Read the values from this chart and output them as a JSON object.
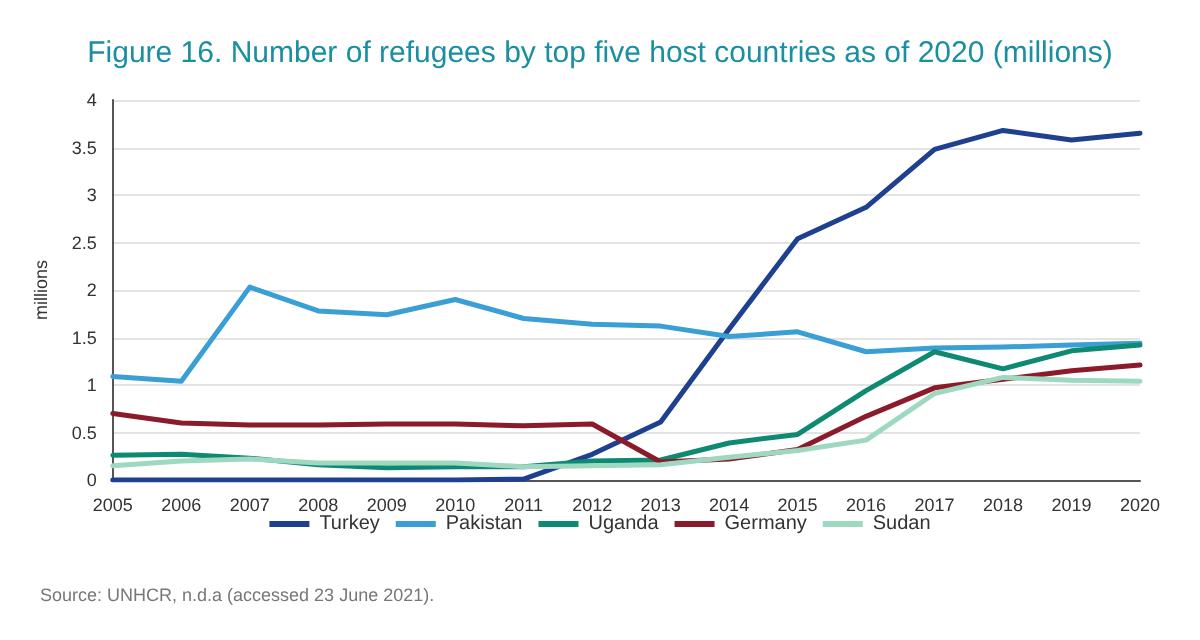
{
  "chart_data": {
    "type": "line",
    "title": "Figure 16. Number of refugees by top five host countries as of 2020 (millions)",
    "ylabel": "millions",
    "categories": [
      "2005",
      "2006",
      "2007",
      "2008",
      "2009",
      "2010",
      "2011",
      "2012",
      "2013",
      "2014",
      "2015",
      "2016",
      "2017",
      "2018",
      "2019",
      "2020"
    ],
    "series": [
      {
        "name": "Turkey",
        "color": "#1f3f8f",
        "values": [
          0,
          0,
          0,
          0,
          0,
          0,
          0.01,
          0.27,
          0.61,
          1.59,
          2.54,
          2.87,
          3.48,
          3.68,
          3.58,
          3.65
        ]
      },
      {
        "name": "Pakistan",
        "color": "#3a9fd4",
        "values": [
          1.09,
          1.04,
          2.03,
          1.78,
          1.74,
          1.9,
          1.7,
          1.64,
          1.62,
          1.51,
          1.56,
          1.35,
          1.39,
          1.4,
          1.42,
          1.44
        ]
      },
      {
        "name": "Uganda",
        "color": "#0f8a72",
        "values": [
          0.26,
          0.27,
          0.23,
          0.16,
          0.13,
          0.14,
          0.14,
          0.2,
          0.21,
          0.39,
          0.48,
          0.94,
          1.35,
          1.17,
          1.36,
          1.42
        ]
      },
      {
        "name": "Germany",
        "color": "#8b1a2a",
        "values": [
          0.7,
          0.6,
          0.58,
          0.58,
          0.59,
          0.59,
          0.57,
          0.59,
          0.19,
          0.22,
          0.32,
          0.67,
          0.97,
          1.06,
          1.15,
          1.21
        ]
      },
      {
        "name": "Sudan",
        "color": "#9fd8c0",
        "values": [
          0.15,
          0.2,
          0.22,
          0.18,
          0.18,
          0.18,
          0.14,
          0.15,
          0.16,
          0.24,
          0.31,
          0.42,
          0.91,
          1.08,
          1.05,
          1.04
        ]
      }
    ],
    "ylim": [
      0,
      4
    ],
    "yticks": [
      0,
      0.5,
      1,
      1.5,
      2,
      2.5,
      3,
      3.5,
      4
    ],
    "grid": "y",
    "legend": "bottom",
    "marker": "none",
    "line_style": "solid",
    "annotations": [
      "Source: UNHCR, n.d.a (accessed 23 June 2021)."
    ]
  }
}
